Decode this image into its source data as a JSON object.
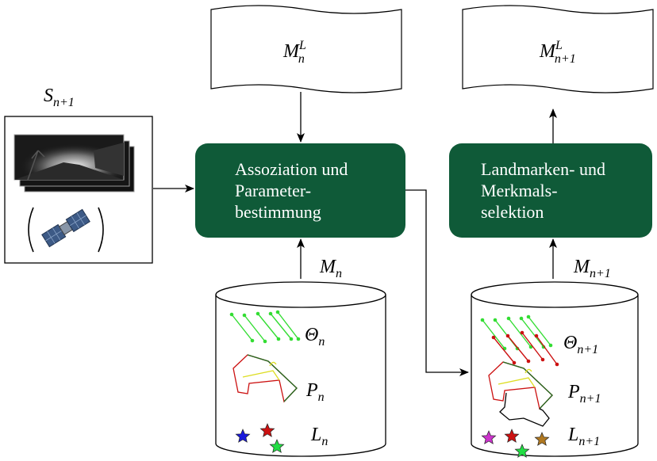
{
  "input": {
    "main": "S",
    "sub": "n+1"
  },
  "map_in": {
    "main": "M",
    "sup": "L",
    "sub": "n"
  },
  "map_out": {
    "main": "M",
    "sup": "L",
    "sub": "n+1"
  },
  "box_assoc": {
    "line1": "Assoziation und",
    "line2": "Parameter-",
    "line3": "bestimmung"
  },
  "box_select": {
    "line1": "Landmarken- und",
    "line2": "Merkmals-",
    "line3": "selektion"
  },
  "arrow_mn": {
    "main": "M",
    "sub": "n"
  },
  "arrow_mn1": {
    "main": "M",
    "sub": "n+1"
  },
  "db_left": {
    "theta": {
      "main": "Θ",
      "sub": "n"
    },
    "p": {
      "main": "P",
      "sub": "n"
    },
    "l": {
      "main": "L",
      "sub": "n"
    }
  },
  "db_right": {
    "theta": {
      "main": "Θ",
      "sub": "n+1"
    },
    "p": {
      "main": "P",
      "sub": "n+1"
    },
    "l": {
      "main": "L",
      "sub": "n+1"
    }
  },
  "colors": {
    "box_fill": "#0f5a38",
    "line_green": "#33dd33",
    "line_red": "#cc1111",
    "star_blue": "#1a1add",
    "star_red": "#cc1111",
    "star_green": "#22dd44",
    "star_magenta": "#cc33cc",
    "star_brown": "#b07820"
  }
}
